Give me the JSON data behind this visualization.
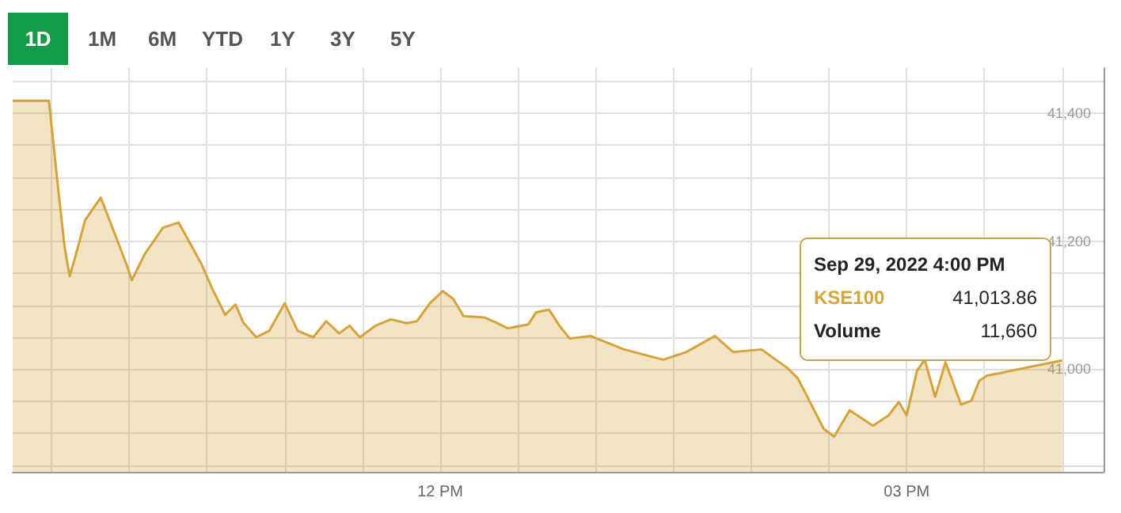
{
  "chart_data": {
    "type": "area",
    "x": [
      "2022-09-29T09:15",
      "2022-09-29T09:29",
      "2022-09-29T09:32",
      "2022-09-29T09:35",
      "2022-09-29T09:37",
      "2022-09-29T09:40",
      "2022-09-29T09:43",
      "2022-09-29T09:49",
      "2022-09-29T09:59",
      "2022-09-29T10:01",
      "2022-09-29T10:06",
      "2022-09-29T10:13",
      "2022-09-29T10:19",
      "2022-09-29T10:23",
      "2022-09-29T10:28",
      "2022-09-29T10:32",
      "2022-09-29T10:37",
      "2022-09-29T10:41",
      "2022-09-29T10:44",
      "2022-09-29T10:49",
      "2022-09-29T10:54",
      "2022-09-29T11:00",
      "2022-09-29T11:05",
      "2022-09-29T11:11",
      "2022-09-29T11:16",
      "2022-09-29T11:21",
      "2022-09-29T11:25",
      "2022-09-29T11:29",
      "2022-09-29T11:35",
      "2022-09-29T11:41",
      "2022-09-29T11:47",
      "2022-09-29T11:51",
      "2022-09-29T11:56",
      "2022-09-29T12:01",
      "2022-09-29T12:05",
      "2022-09-29T12:09",
      "2022-09-29T12:17",
      "2022-09-29T12:22",
      "2022-09-29T12:26",
      "2022-09-29T12:34",
      "2022-09-29T12:37",
      "2022-09-29T12:42",
      "2022-09-29T12:46",
      "2022-09-29T12:50",
      "2022-09-29T12:58",
      "2022-09-29T13:11",
      "2022-09-29T13:26",
      "2022-09-29T13:35",
      "2022-09-29T13:46",
      "2022-09-29T13:53",
      "2022-09-29T14:04",
      "2022-09-29T14:14",
      "2022-09-29T14:18",
      "2022-09-29T14:28",
      "2022-09-29T14:32",
      "2022-09-29T14:38",
      "2022-09-29T14:47",
      "2022-09-29T14:53",
      "2022-09-29T14:57",
      "2022-09-29T15:00",
      "2022-09-29T15:04",
      "2022-09-29T15:07",
      "2022-09-29T15:11",
      "2022-09-29T15:15",
      "2022-09-29T15:21",
      "2022-09-29T15:25",
      "2022-09-29T15:28",
      "2022-09-29T15:31",
      "2022-09-29T16:00"
    ],
    "series": [
      {
        "name": "KSE100",
        "color": "#d4a33a",
        "values": [
          41419,
          41419,
          41303,
          41192,
          41145,
          41188,
          41233,
          41268,
          41163,
          41139,
          41180,
          41221,
          41229,
          41200,
          41163,
          41126,
          41085,
          41101,
          41073,
          41050,
          41060,
          41103,
          41060,
          41050,
          41075,
          41056,
          41068,
          41050,
          41068,
          41078,
          41072,
          41075,
          41103,
          41122,
          41110,
          41083,
          41081,
          41072,
          41064,
          41070,
          41089,
          41093,
          41068,
          41048,
          41052,
          41031,
          41015,
          41027,
          41052,
          41027,
          41031,
          41002,
          40986,
          40907,
          40895,
          40936,
          40912,
          40928,
          40949,
          40928,
          40998,
          41015,
          40957,
          41011,
          40945,
          40951,
          40982,
          40990,
          41013.86
        ]
      }
    ],
    "xlim": [
      "2022-09-29T09:15",
      "2022-09-29T16:16"
    ],
    "xticks": [
      {
        "value": "2022-09-29T09:30",
        "label": null
      },
      {
        "value": "2022-09-29T10:00",
        "label": null
      },
      {
        "value": "2022-09-29T10:30",
        "label": null
      },
      {
        "value": "2022-09-29T11:00",
        "label": null
      },
      {
        "value": "2022-09-29T11:30",
        "label": null
      },
      {
        "value": "2022-09-29T12:00",
        "label": "12 PM"
      },
      {
        "value": "2022-09-29T12:30",
        "label": null
      },
      {
        "value": "2022-09-29T13:00",
        "label": null
      },
      {
        "value": "2022-09-29T13:30",
        "label": null
      },
      {
        "value": "2022-09-29T14:00",
        "label": null
      },
      {
        "value": "2022-09-29T14:30",
        "label": null
      },
      {
        "value": "2022-09-29T15:00",
        "label": "03 PM"
      },
      {
        "value": "2022-09-29T15:30",
        "label": null
      },
      {
        "value": "2022-09-29T16:00",
        "label": null
      }
    ],
    "ylim": [
      40840,
      41470
    ],
    "yticks": [
      {
        "value": 40850,
        "label": null
      },
      {
        "value": 40900,
        "label": null
      },
      {
        "value": 40950,
        "label": null
      },
      {
        "value": 41000,
        "label": "41,000"
      },
      {
        "value": 41050,
        "label": null
      },
      {
        "value": 41100,
        "label": null
      },
      {
        "value": 41150,
        "label": null
      },
      {
        "value": 41200,
        "label": "41,200"
      },
      {
        "value": 41250,
        "label": null
      },
      {
        "value": 41300,
        "label": null
      },
      {
        "value": 41350,
        "label": null
      },
      {
        "value": 41400,
        "label": "41,400"
      },
      {
        "value": 41450,
        "label": null
      }
    ],
    "grid": true,
    "annotations": [
      "Sep 29, 2022 4:00 PM",
      "41,013.86",
      "Volume",
      "11,660",
      "1D",
      "1M",
      "6M",
      "YTD",
      "1Y",
      "3Y",
      "5Y"
    ]
  }
}
